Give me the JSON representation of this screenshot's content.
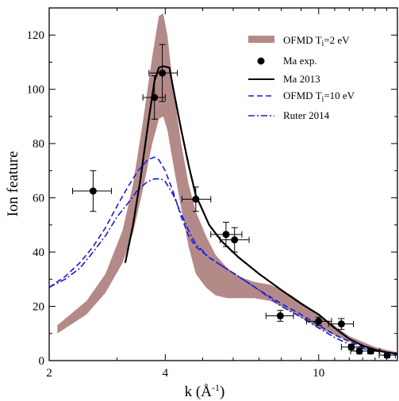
{
  "chart_data": {
    "type": "line",
    "x_scale": "log",
    "xlim": [
      2,
      16
    ],
    "ylim": [
      0,
      130
    ],
    "xticks": [
      2,
      4,
      10
    ],
    "yticks": [
      0,
      20,
      40,
      60,
      80,
      100,
      120
    ],
    "xlabel": {
      "main": "k  (Å",
      "sup": "-1",
      "close": ")"
    },
    "ylabel": "Ion feature",
    "legend_position": "top-right",
    "legend": [
      {
        "label": "OFMD T",
        "sub": "i",
        "suffix": "=2 eV"
      },
      {
        "label": "Ma exp."
      },
      {
        "label": "Ma 2013"
      },
      {
        "label": "OFMD T",
        "sub": "i",
        "suffix": "=10 eV"
      },
      {
        "label": "Ruter 2014"
      }
    ],
    "colors": {
      "band": "#b48a89",
      "exp": "#000000",
      "ma2013": "#000000",
      "ofmd10": "#1a1adc",
      "ruter": "#1a1adc"
    },
    "series": [
      {
        "key": "ofmd2",
        "type": "band",
        "x": [
          2.1,
          2.5,
          2.8,
          3.1,
          3.3,
          3.5,
          3.7,
          3.85,
          3.95,
          4.05,
          4.2,
          4.4,
          4.6,
          4.8,
          5.1,
          5.4,
          5.8,
          6.2,
          6.8,
          7.5,
          8.5,
          10,
          12,
          14,
          16
        ],
        "upper": [
          13,
          22,
          32,
          48,
          65,
          88,
          112,
          127,
          128,
          120,
          100,
          80,
          65,
          55,
          46,
          39,
          34,
          31,
          29,
          28,
          24,
          17,
          9,
          5,
          3
        ],
        "lower": [
          10,
          17,
          25,
          36,
          47,
          63,
          80,
          89,
          90,
          85,
          72,
          56,
          42,
          32,
          27,
          24,
          23,
          23,
          23,
          22,
          18,
          12,
          7,
          4,
          2
        ]
      },
      {
        "key": "exp",
        "type": "points",
        "points": [
          {
            "x": 2.6,
            "y": 62.5,
            "xlo": 2.3,
            "xhi": 2.9,
            "yerr": 7.5
          },
          {
            "x": 3.75,
            "y": 97,
            "xlo": 3.5,
            "xhi": 4.0,
            "yerr": 8
          },
          {
            "x": 3.93,
            "y": 106,
            "xlo": 3.63,
            "xhi": 4.3,
            "yerr": 10.5
          },
          {
            "x": 4.8,
            "y": 59.5,
            "xlo": 4.42,
            "xhi": 5.25,
            "yerr": 4.5
          },
          {
            "x": 5.75,
            "y": 46.5,
            "xlo": 5.25,
            "xhi": 6.32,
            "yerr": 4.5
          },
          {
            "x": 6.05,
            "y": 44.5,
            "xlo": 5.55,
            "xhi": 6.6,
            "yerr": 4.5
          },
          {
            "x": 7.95,
            "y": 16.5,
            "xlo": 7.3,
            "xhi": 8.6,
            "yerr": 2
          },
          {
            "x": 10,
            "y": 14.5,
            "xlo": 9.3,
            "xhi": 10.8,
            "yerr": 1.5
          },
          {
            "x": 11.45,
            "y": 13.5,
            "xlo": 10.6,
            "xhi": 12.3,
            "yerr": 2
          },
          {
            "x": 12.15,
            "y": 5,
            "xlo": 11.45,
            "xhi": 12.95,
            "yerr": 1
          },
          {
            "x": 12.75,
            "y": 3.5,
            "xlo": 12.1,
            "xhi": 13.4,
            "yerr": 1
          },
          {
            "x": 13.65,
            "y": 3.5,
            "xlo": 12.9,
            "xhi": 14.4,
            "yerr": 1
          },
          {
            "x": 15.05,
            "y": 2,
            "xlo": 14.35,
            "xhi": 15.8,
            "yerr": 1
          }
        ]
      },
      {
        "key": "ma2013",
        "type": "line",
        "x": [
          3.15,
          3.3,
          3.45,
          3.6,
          3.75,
          3.85,
          3.95,
          4.1,
          4.2,
          4.4,
          4.6,
          4.8,
          5.2,
          5.6,
          6.2,
          7.0,
          8.0,
          9.0,
          10,
          11,
          12,
          13,
          14,
          15,
          16
        ],
        "y": [
          36,
          50,
          67,
          86,
          103,
          108,
          108.5,
          108,
          100,
          85,
          72,
          61,
          50,
          44,
          38,
          32,
          26,
          21,
          17,
          12,
          8,
          5.5,
          4,
          3,
          2.5
        ]
      },
      {
        "key": "ofmd10",
        "type": "line",
        "x": [
          2,
          2.2,
          2.4,
          2.6,
          2.8,
          3.0,
          3.2,
          3.4,
          3.6,
          3.75,
          3.85,
          4.0,
          4.2,
          4.4,
          4.6,
          4.8,
          5.2,
          5.6,
          6.2,
          7.0,
          8.0,
          9.0,
          10,
          11,
          12,
          13,
          14,
          15,
          16
        ],
        "y": [
          27,
          31,
          36,
          42,
          49,
          57,
          64,
          70,
          74,
          75,
          74,
          70,
          62,
          53,
          46,
          42,
          38,
          35,
          31,
          26,
          21,
          17,
          13,
          9.5,
          7,
          5,
          4,
          3,
          2
        ]
      },
      {
        "key": "ruter",
        "type": "line",
        "x": [
          2,
          2.2,
          2.4,
          2.6,
          2.8,
          3.0,
          3.2,
          3.4,
          3.6,
          3.75,
          3.9,
          4.0,
          4.2,
          4.4,
          4.6,
          4.8,
          5.2,
          5.6,
          6.2,
          7.0,
          8.0,
          9.0,
          10,
          11,
          12,
          13,
          14,
          15,
          16
        ],
        "y": [
          27,
          30,
          34,
          40,
          46,
          53,
          58,
          63,
          66,
          67,
          67,
          66,
          61,
          54,
          48,
          43,
          38,
          35,
          31,
          26,
          20,
          16,
          12,
          8.5,
          6,
          4.5,
          3.5,
          3,
          2.5
        ]
      }
    ]
  }
}
